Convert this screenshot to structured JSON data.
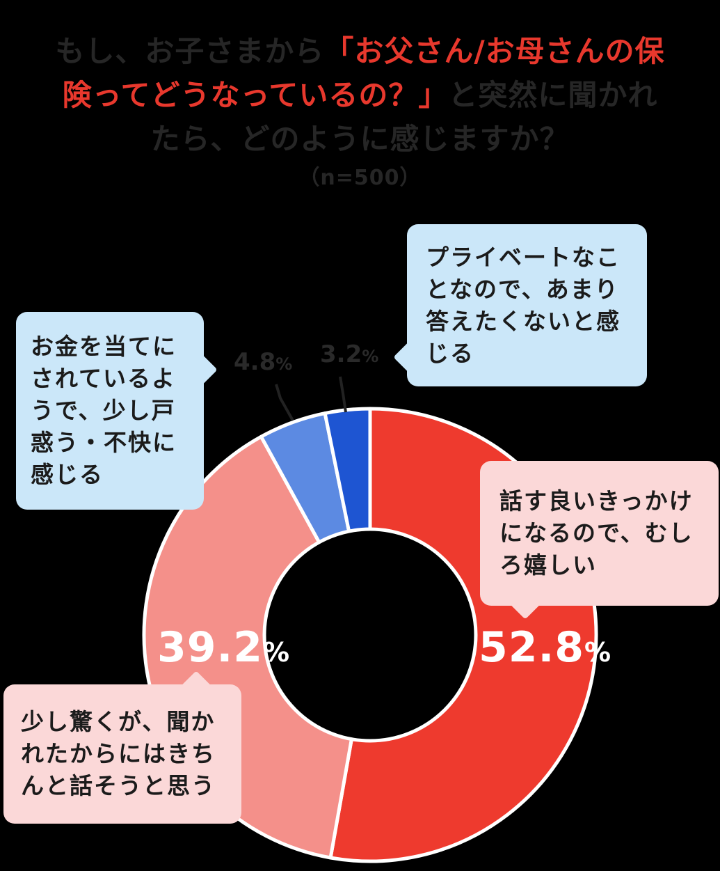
{
  "title": {
    "part1": "もし、お子さまから",
    "part2": "「お父さん/お母さんの保険ってどうなっているの？」",
    "part3": "と突然に聞かれたら、どのように感じますか？",
    "sample_size": "（n=500）"
  },
  "colors": {
    "background": "#000000",
    "title_dark": "#262626",
    "title_red": "#e8382d",
    "separator": "#ffffff",
    "big_label_text": "#ffffff",
    "small_label_text": "#2a2a2a",
    "leader_line": "#222222",
    "bubble_blue": "#cbe7f9",
    "bubble_pink": "#fbd8d8"
  },
  "chart_data": {
    "type": "pie",
    "subtype": "donut",
    "start_angle_deg_from_top": 0,
    "direction": "clockwise",
    "unit": "%",
    "segments": [
      {
        "label": "話す良いきっかけになるので、むしろ嬉しい",
        "value": 52.8,
        "value_text": "52.8",
        "color": "#ee3a2e"
      },
      {
        "label": "少し驚くが、聞かれたからにはきちんと話そうと思う",
        "value": 39.2,
        "value_text": "39.2",
        "color": "#f4908a"
      },
      {
        "label": "お金を当てにされているようで、少し戸惑う・不快に感じる",
        "value": 4.8,
        "value_text": "4.8",
        "color": "#5c8ae2"
      },
      {
        "label": "プライベートなことなので、あまり答えたくないと感じる",
        "value": 3.2,
        "value_text": "3.2",
        "color": "#1e55d2"
      }
    ]
  }
}
